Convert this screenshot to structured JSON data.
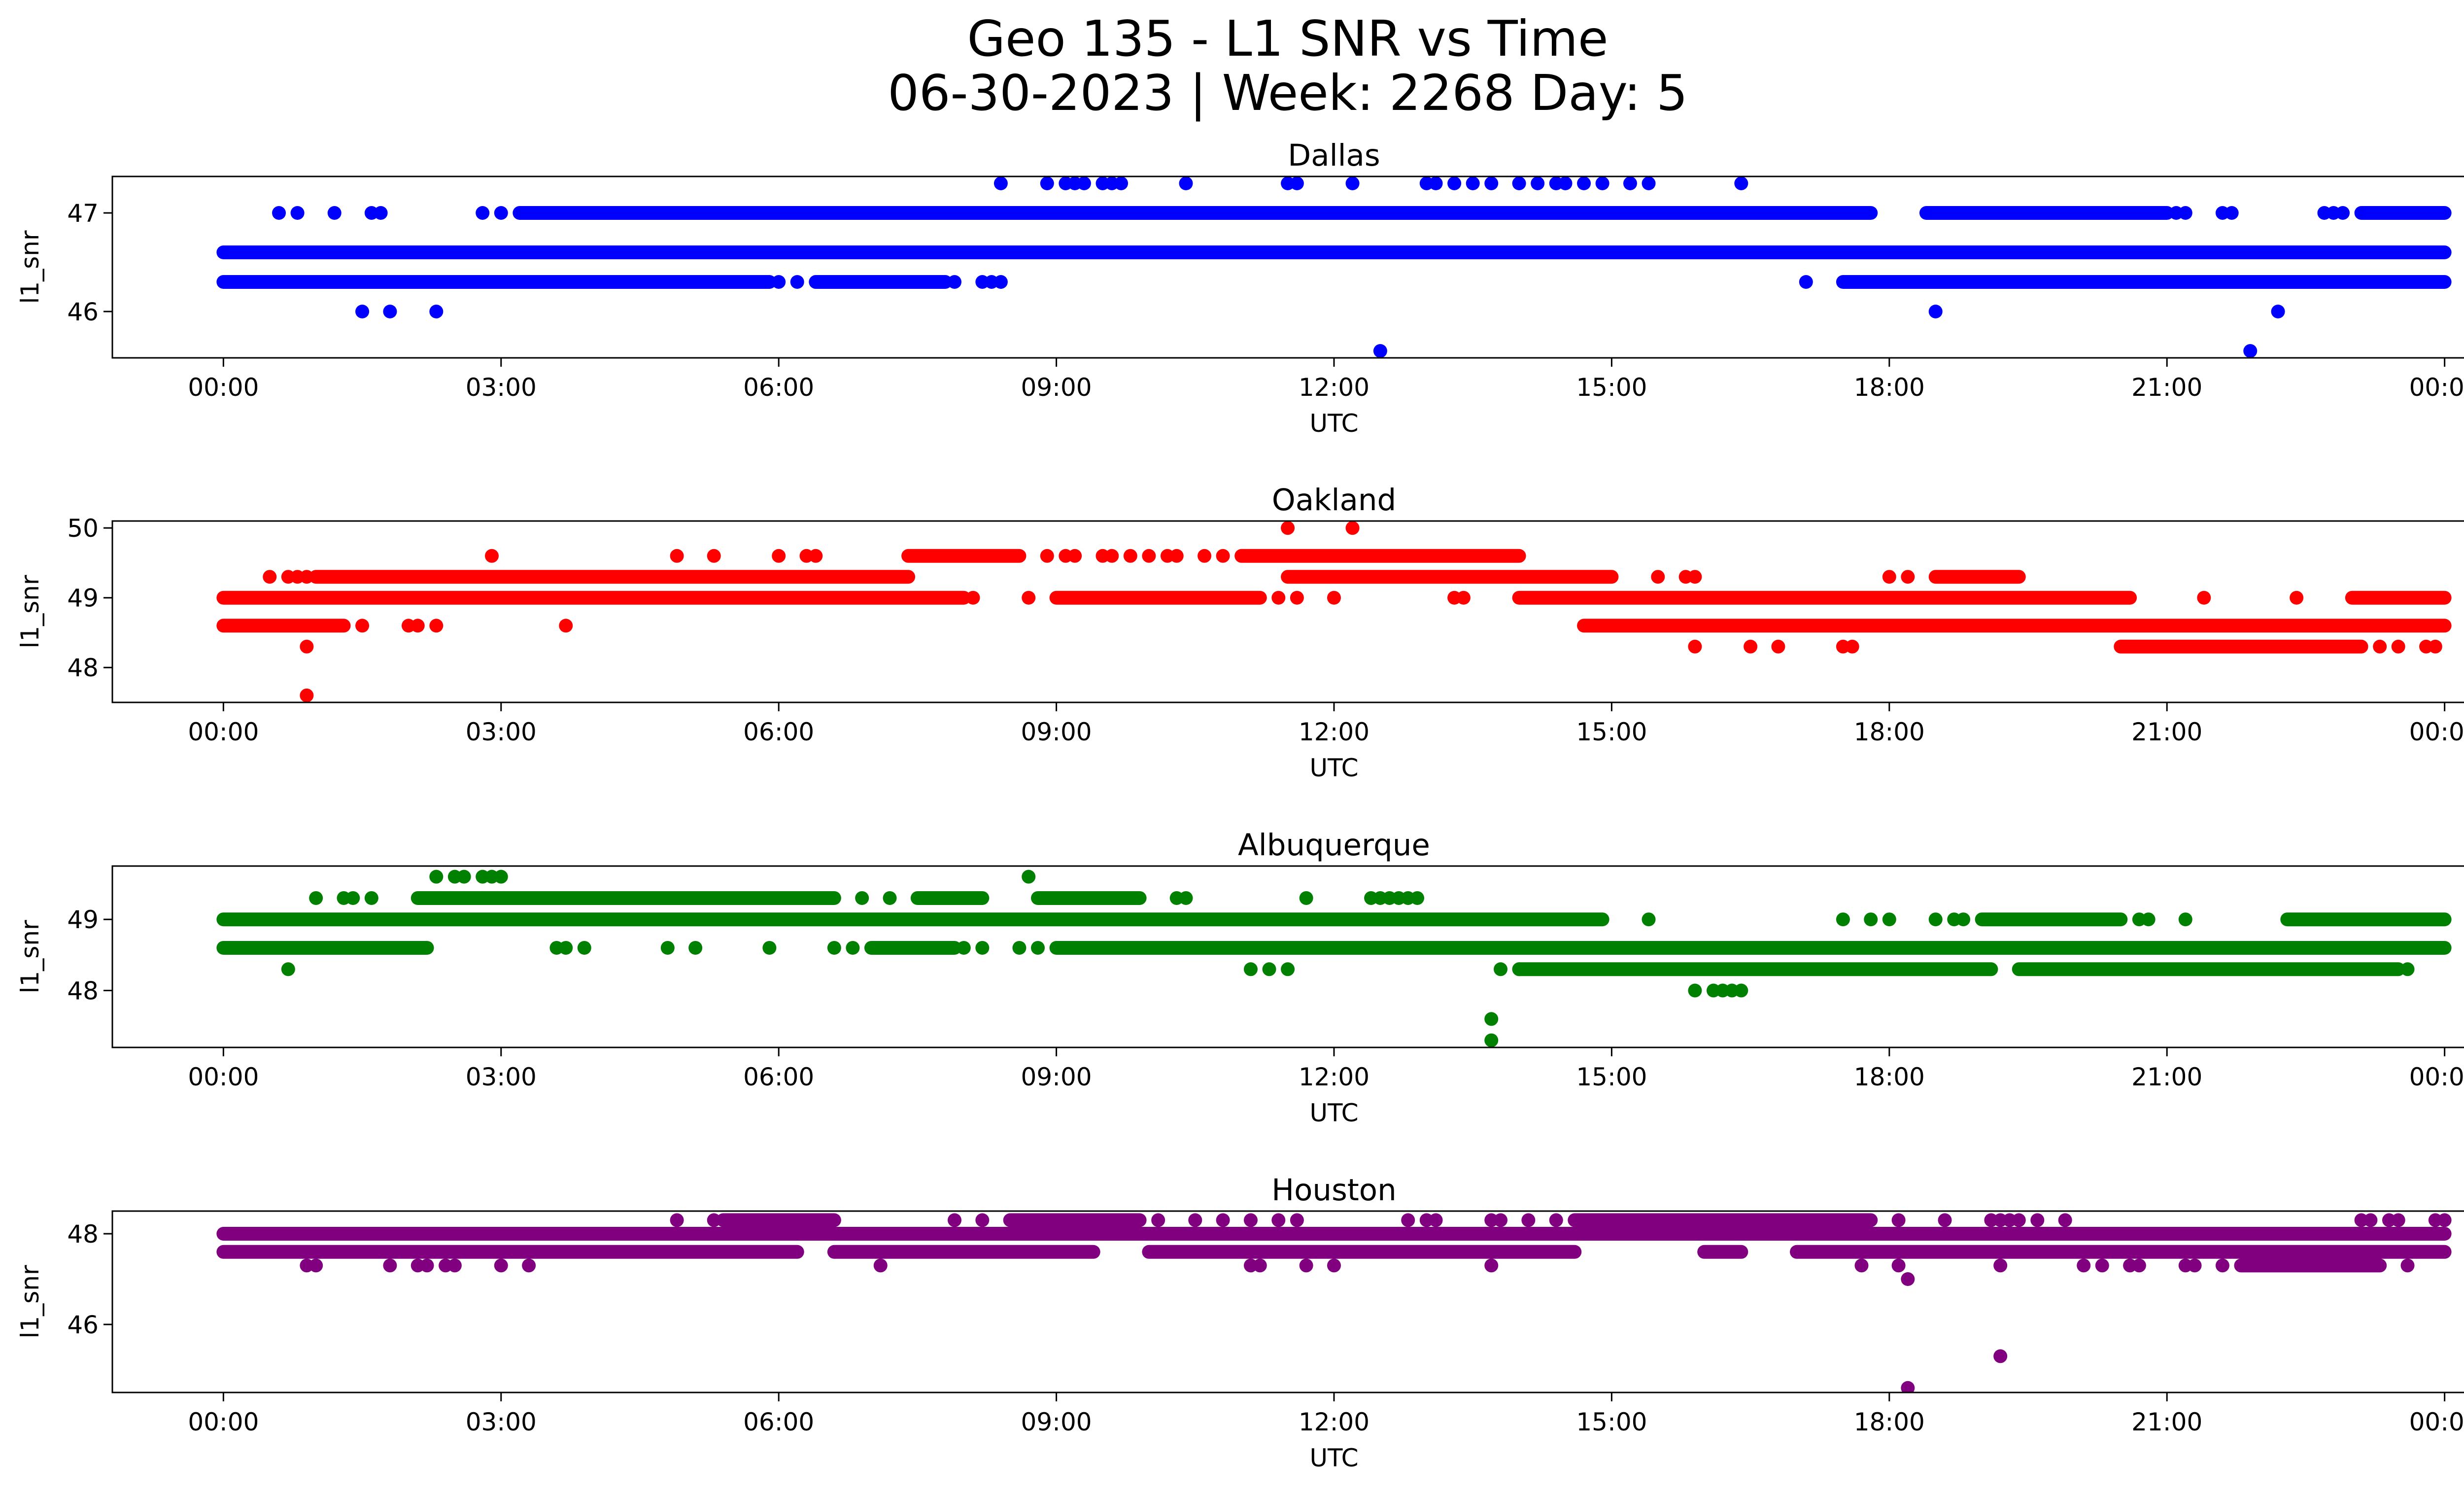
{
  "figure": {
    "title_line1": "Geo 135 - L1 SNR vs Time",
    "title_line2": "06-30-2023 | Week: 2268 Day: 5"
  },
  "chart_data": [
    {
      "type": "scatter",
      "title": "Dallas",
      "xlabel": "UTC",
      "ylabel": "l1_snr",
      "color": "#0000ff",
      "x_ticks": [
        "00:00",
        "03:00",
        "06:00",
        "09:00",
        "12:00",
        "15:00",
        "18:00",
        "21:00",
        "00:00"
      ],
      "x_unit": "hours UTC (0-24)",
      "xlim": [
        -1.2,
        25.2
      ],
      "y_ticks": [
        46,
        47
      ],
      "ylim": [
        45.53,
        47.37
      ],
      "grid": false,
      "series": [
        {
          "values_y": 46.6,
          "x_ranges": [
            [
              0.0,
              24.0
            ]
          ]
        },
        {
          "values_y": 46.3,
          "x_ranges": [
            [
              0.0,
              5.9
            ],
            [
              6.4,
              7.8
            ],
            [
              17.5,
              24.0
            ]
          ]
        },
        {
          "values_y": 47.0,
          "x_ranges": [
            [
              3.2,
              17.8
            ],
            [
              18.4,
              21.0
            ],
            [
              23.1,
              24.0
            ]
          ]
        },
        {
          "values_y": 46.3,
          "x": [
            6.0,
            6.2,
            7.9,
            8.2,
            8.3,
            8.4,
            17.1
          ]
        },
        {
          "values_y": 47.0,
          "x": [
            0.6,
            0.8,
            1.2,
            1.6,
            1.7,
            2.8,
            3.0,
            21.1,
            21.2,
            21.6,
            21.7,
            22.7,
            22.8,
            22.9
          ]
        },
        {
          "values_y": 46.0,
          "x": [
            1.5,
            1.8,
            2.3,
            18.5,
            22.2
          ]
        },
        {
          "values_y": 47.3,
          "x": [
            8.4,
            8.9,
            9.1,
            9.2,
            9.3,
            9.5,
            9.6,
            9.7,
            10.4,
            11.5,
            11.6,
            12.2,
            13.0,
            13.1,
            13.3,
            13.5,
            13.7,
            14.0,
            14.2,
            14.4,
            14.5,
            14.7,
            14.9,
            15.2,
            15.4,
            16.4
          ]
        },
        {
          "values_y": 45.6,
          "x": [
            12.5,
            21.9
          ]
        }
      ]
    },
    {
      "type": "scatter",
      "title": "Oakland",
      "xlabel": "UTC",
      "ylabel": "l1_snr",
      "color": "#ff0000",
      "x_ticks": [
        "00:00",
        "03:00",
        "06:00",
        "09:00",
        "12:00",
        "15:00",
        "18:00",
        "21:00",
        "00:00"
      ],
      "x_unit": "hours UTC (0-24)",
      "xlim": [
        -1.2,
        25.2
      ],
      "y_ticks": [
        48,
        49,
        50
      ],
      "ylim": [
        47.5,
        50.1
      ],
      "grid": false,
      "series": [
        {
          "values_y": 49.0,
          "x_ranges": [
            [
              0.0,
              8.0
            ],
            [
              9.0,
              11.2
            ],
            [
              14.0,
              20.6
            ],
            [
              23.0,
              24.0
            ]
          ]
        },
        {
          "values_y": 48.6,
          "x_ranges": [
            [
              0.0,
              1.3
            ],
            [
              14.7,
              24.0
            ]
          ]
        },
        {
          "values_y": 49.3,
          "x_ranges": [
            [
              1.0,
              7.4
            ],
            [
              11.5,
              15.0
            ],
            [
              18.5,
              19.4
            ]
          ]
        },
        {
          "values_y": 49.6,
          "x_ranges": [
            [
              7.4,
              8.6
            ],
            [
              11.0,
              14.0
            ]
          ]
        },
        {
          "values_y": 48.3,
          "x_ranges": [
            [
              20.5,
              23.1
            ]
          ]
        },
        {
          "values_y": 49.3,
          "x": [
            0.5,
            0.7,
            0.8,
            0.9,
            15.5,
            15.8,
            15.9,
            18.0,
            18.2
          ]
        },
        {
          "values_y": 49.6,
          "x": [
            2.9,
            4.9,
            5.3,
            6.0,
            6.3,
            6.4,
            8.9,
            9.1,
            9.2,
            9.5,
            9.6,
            9.8,
            10.0,
            10.2,
            10.3,
            10.6,
            10.8
          ]
        },
        {
          "values_y": 48.6,
          "x": [
            1.5,
            2.0,
            2.1,
            2.3,
            3.7
          ]
        },
        {
          "values_y": 49.0,
          "x": [
            8.1,
            8.7,
            11.4,
            11.6,
            12.0,
            13.3,
            13.4,
            21.4,
            22.4
          ]
        },
        {
          "values_y": 48.3,
          "x": [
            0.9,
            15.9,
            16.5,
            16.8,
            17.5,
            17.6,
            23.3,
            23.5,
            23.8,
            23.9
          ]
        },
        {
          "values_y": 50.0,
          "x": [
            11.5,
            12.2
          ]
        },
        {
          "values_y": 47.6,
          "x": [
            0.9
          ]
        }
      ]
    },
    {
      "type": "scatter",
      "title": "Albuquerque",
      "xlabel": "UTC",
      "ylabel": "l1_snr",
      "color": "#008000",
      "x_ticks": [
        "00:00",
        "03:00",
        "06:00",
        "09:00",
        "12:00",
        "15:00",
        "18:00",
        "21:00",
        "00:00"
      ],
      "x_unit": "hours UTC (0-24)",
      "xlim": [
        -1.2,
        25.2
      ],
      "y_ticks": [
        48,
        49
      ],
      "ylim": [
        47.2,
        49.75
      ],
      "grid": false,
      "series": [
        {
          "values_y": 49.0,
          "x_ranges": [
            [
              0.0,
              14.9
            ],
            [
              19.0,
              20.5
            ],
            [
              22.3,
              24.0
            ]
          ]
        },
        {
          "values_y": 48.6,
          "x_ranges": [
            [
              0.0,
              2.2
            ],
            [
              7.0,
              7.9
            ],
            [
              9.0,
              24.0
            ]
          ]
        },
        {
          "values_y": 49.3,
          "x_ranges": [
            [
              2.1,
              6.6
            ],
            [
              7.5,
              8.2
            ],
            [
              8.8,
              9.9
            ]
          ]
        },
        {
          "values_y": 48.3,
          "x_ranges": [
            [
              14.0,
              19.1
            ],
            [
              19.4,
              23.5
            ]
          ]
        },
        {
          "values_y": 49.3,
          "x": [
            1.0,
            1.3,
            1.4,
            1.6,
            6.9,
            7.2,
            10.3,
            10.4,
            11.7,
            12.4,
            12.5,
            12.6,
            12.7,
            12.8,
            12.9
          ]
        },
        {
          "values_y": 49.6,
          "x": [
            2.3,
            2.5,
            2.6,
            2.8,
            2.9,
            3.0,
            8.7
          ]
        },
        {
          "values_y": 48.6,
          "x": [
            3.6,
            3.7,
            3.9,
            4.8,
            5.1,
            5.9,
            6.6,
            6.8,
            8.0,
            8.2,
            8.6,
            8.8
          ]
        },
        {
          "values_y": 48.3,
          "x": [
            0.7,
            11.1,
            11.3,
            11.5,
            13.8,
            14.0,
            23.6
          ]
        },
        {
          "values_y": 49.0,
          "x": [
            15.4,
            17.5,
            17.8,
            18.0,
            18.5,
            18.7,
            18.8,
            20.7,
            20.8,
            21.2
          ]
        },
        {
          "values_y": 48.0,
          "x": [
            15.9,
            16.1,
            16.2,
            16.3,
            16.4
          ]
        },
        {
          "values_y": 47.6,
          "x": [
            13.7
          ]
        },
        {
          "values_y": 47.3,
          "x": [
            13.7
          ]
        }
      ]
    },
    {
      "type": "scatter",
      "title": "Houston",
      "xlabel": "UTC",
      "ylabel": "l1_snr",
      "color": "#800080",
      "x_ticks": [
        "00:00",
        "03:00",
        "06:00",
        "09:00",
        "12:00",
        "15:00",
        "18:00",
        "21:00",
        "00:00"
      ],
      "x_unit": "hours UTC (0-24)",
      "xlim": [
        -1.2,
        25.2
      ],
      "y_ticks": [
        46,
        48
      ],
      "ylim": [
        44.5,
        48.5
      ],
      "grid": false,
      "series": [
        {
          "values_y": 48.0,
          "x_ranges": [
            [
              0.0,
              24.0
            ]
          ]
        },
        {
          "values_y": 47.6,
          "x_ranges": [
            [
              0.0,
              6.2
            ],
            [
              6.6,
              9.4
            ],
            [
              10.0,
              14.6
            ],
            [
              16.0,
              16.4
            ],
            [
              17.0,
              24.0
            ]
          ]
        },
        {
          "values_y": 48.3,
          "x_ranges": [
            [
              5.4,
              6.6
            ],
            [
              8.5,
              9.9
            ],
            [
              14.6,
              17.8
            ]
          ]
        },
        {
          "values_y": 47.3,
          "x_ranges": [
            [
              21.8,
              23.3
            ]
          ]
        },
        {
          "values_y": 48.3,
          "x": [
            4.9,
            5.3,
            7.9,
            8.2,
            10.1,
            10.5,
            10.8,
            11.1,
            11.4,
            11.6,
            12.8,
            13.0,
            13.1,
            13.7,
            13.8,
            14.1,
            14.4,
            18.1,
            18.6,
            19.1,
            19.2,
            19.3,
            19.4,
            19.6,
            19.9,
            23.1,
            23.2,
            23.4,
            23.5,
            23.9,
            24.0
          ]
        },
        {
          "values_y": 47.3,
          "x": [
            0.9,
            1.0,
            1.8,
            2.1,
            2.2,
            2.4,
            2.5,
            3.0,
            3.3,
            7.1,
            11.1,
            11.2,
            11.7,
            12.0,
            13.7,
            17.7,
            18.1,
            19.2,
            20.1,
            20.3,
            20.6,
            20.7,
            21.2,
            21.3,
            21.6,
            23.6
          ]
        },
        {
          "values_y": 47.0,
          "x": [
            18.2
          ]
        },
        {
          "values_y": 45.3,
          "x": [
            19.2
          ]
        },
        {
          "values_y": 44.6,
          "x": [
            18.2
          ]
        }
      ]
    }
  ]
}
